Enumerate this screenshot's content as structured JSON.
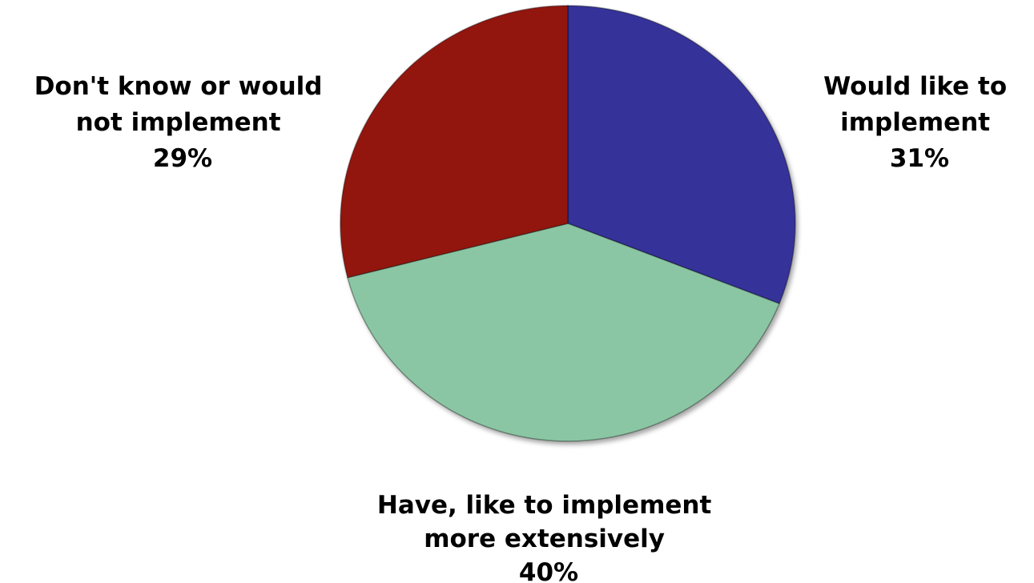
{
  "chart_data": {
    "type": "pie",
    "title": "",
    "slices": [
      {
        "label_lines": [
          "Would like to",
          "implement"
        ],
        "percent_label": "31%",
        "value": 31,
        "color": "#353399"
      },
      {
        "label_lines": [
          "Have, like to implement",
          "more extensively"
        ],
        "percent_label": "40%",
        "value": 40,
        "color": "#8AC6A3"
      },
      {
        "label_lines": [
          "Don't know or would",
          "not implement"
        ],
        "percent_label": "29%",
        "value": 29,
        "color": "#92150F"
      }
    ],
    "legend": "none"
  }
}
